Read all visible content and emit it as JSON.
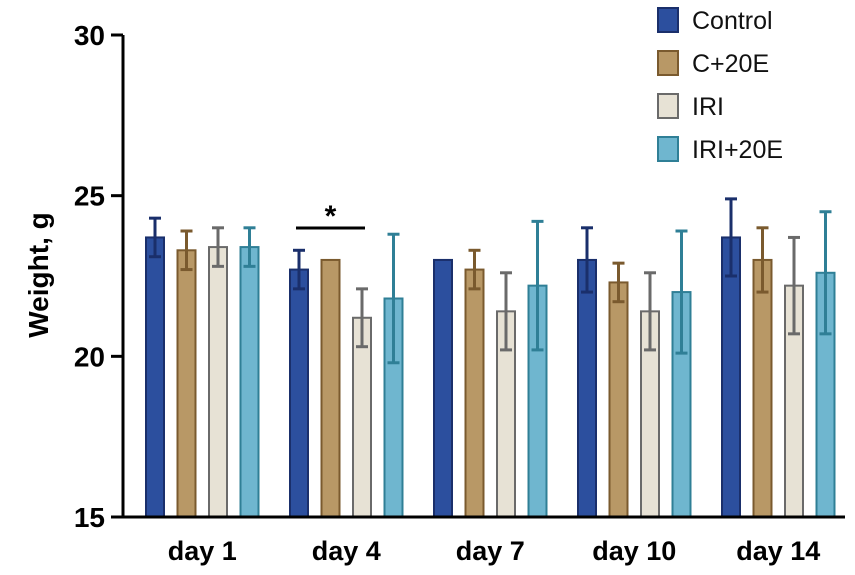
{
  "chart_data": {
    "type": "bar",
    "title": "",
    "xlabel": "",
    "ylabel": "Weight, g",
    "ylim": [
      15,
      30
    ],
    "yticks": [
      "15",
      "20",
      "25",
      "30"
    ],
    "categories": [
      "day 1",
      "day 4",
      "day 7",
      "day 10",
      "day 14"
    ],
    "series": [
      {
        "name": "Control",
        "color": "#2c4f9e",
        "edge": "#1a2f6b",
        "values": [
          23.7,
          22.7,
          23.0,
          23.0,
          23.7
        ],
        "errors": [
          0.6,
          0.6,
          0.0,
          1.0,
          1.2
        ]
      },
      {
        "name": "C+20E",
        "color": "#b89866",
        "edge": "#7a5a2e",
        "values": [
          23.3,
          23.0,
          22.7,
          22.3,
          23.0
        ],
        "errors": [
          0.6,
          0.0,
          0.6,
          0.6,
          1.0
        ]
      },
      {
        "name": "IRI",
        "color": "#e7e2d5",
        "edge": "#6a6a6a",
        "values": [
          23.4,
          21.2,
          21.4,
          21.4,
          22.2
        ],
        "errors": [
          0.6,
          0.9,
          1.2,
          1.2,
          1.5
        ]
      },
      {
        "name": "IRI+20E",
        "color": "#6fb6cf",
        "edge": "#2f7f96",
        "values": [
          23.4,
          21.8,
          22.2,
          22.0,
          22.6
        ],
        "errors": [
          0.6,
          2.0,
          2.0,
          1.9,
          1.9
        ]
      }
    ],
    "legend_position": "top-right",
    "annotations": [
      {
        "text": "*",
        "category": "day 4",
        "from_series": "Control",
        "to_series": "IRI"
      }
    ]
  }
}
